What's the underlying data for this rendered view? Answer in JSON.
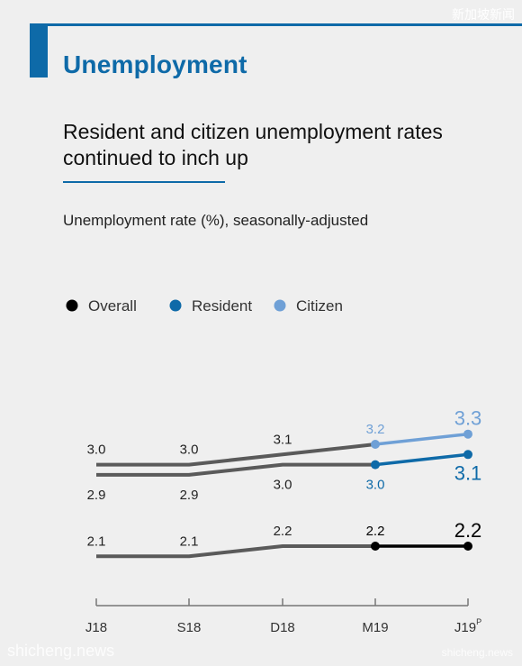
{
  "header": {
    "section_title": "Unemployment",
    "headline": "Resident and citizen unemployment rates continued to inch up",
    "subtitle": "Unemployment rate (%), seasonally-adjusted"
  },
  "watermarks": {
    "top_right": "新加坡新闻",
    "bottom_left": "shicheng.news",
    "bottom_right": "shicheng.news"
  },
  "colors": {
    "accent": "#0e6aa8",
    "overall": "#000000",
    "resident": "#0e6aa8",
    "citizen": "#6fa0d6",
    "history": "#5a5a5a"
  },
  "chart_data": {
    "type": "line",
    "categories": [
      "J18",
      "S18",
      "D18",
      "M19",
      "J19"
    ],
    "category_superscript": {
      "J19": "P"
    },
    "legend": [
      "Overall",
      "Resident",
      "Citizen"
    ],
    "legend_placement": "top-left",
    "series": [
      {
        "name": "Citizen",
        "values": [
          3.0,
          3.0,
          3.1,
          3.2,
          3.3
        ]
      },
      {
        "name": "Resident",
        "values": [
          2.9,
          2.9,
          3.0,
          3.0,
          3.1
        ]
      },
      {
        "name": "Overall",
        "values": [
          2.1,
          2.1,
          2.2,
          2.2,
          2.2
        ]
      }
    ],
    "highlight_from_index": 3,
    "grid": false
  }
}
